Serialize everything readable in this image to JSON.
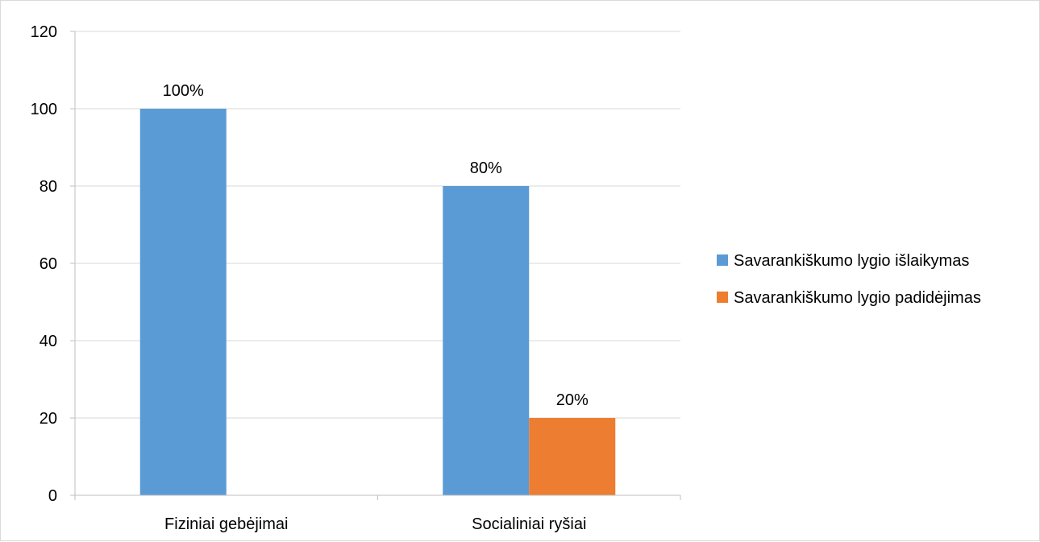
{
  "chart_data": {
    "type": "bar",
    "categories": [
      "Fiziniai gebėjimai",
      "Socialiniai ryšiai"
    ],
    "series": [
      {
        "name": "Savarankiškumo lygio išlaikymas",
        "values": [
          100,
          80
        ],
        "labels": [
          "100%",
          "80%"
        ],
        "color": "#5b9bd5"
      },
      {
        "name": "Savarankiškumo lygio padidėjimas",
        "values": [
          null,
          20
        ],
        "labels": [
          "",
          "20%"
        ],
        "color": "#ed7d31"
      }
    ],
    "title": "",
    "xlabel": "",
    "ylabel": "",
    "ylim": [
      0,
      120
    ],
    "yticks": [
      0,
      20,
      40,
      60,
      80,
      100,
      120
    ],
    "grid": true,
    "legend": "right",
    "gridColor": "#d9d9d9",
    "axisColor": "#bfbfbf"
  }
}
